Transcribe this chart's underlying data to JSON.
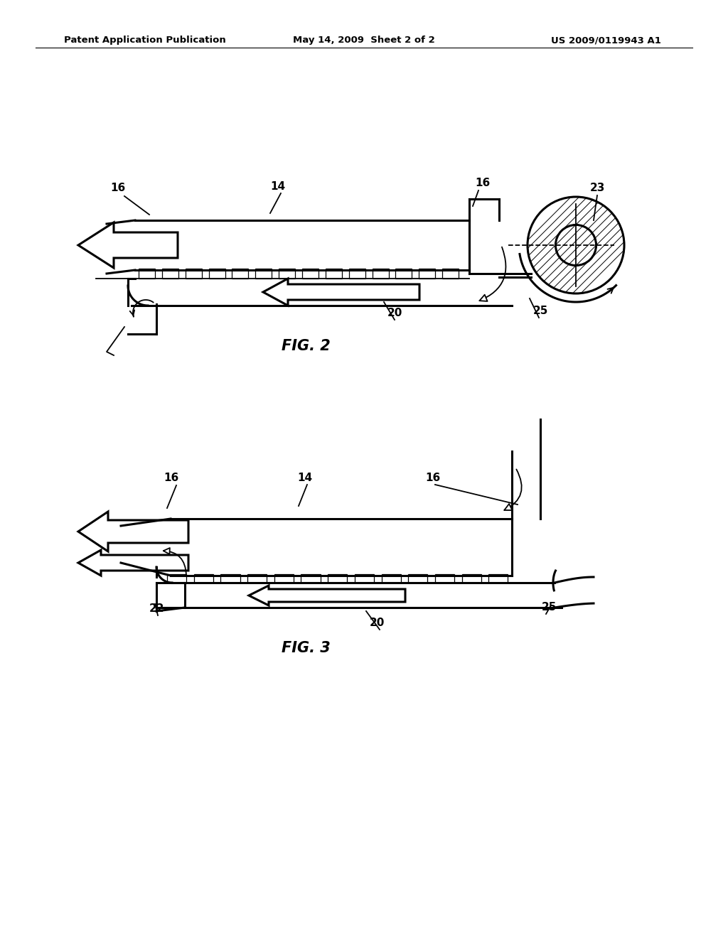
{
  "bg_color": "#ffffff",
  "line_color": "#000000",
  "header_left": "Patent Application Publication",
  "header_mid": "May 14, 2009  Sheet 2 of 2",
  "header_right": "US 2009/0119943 A1",
  "fig2_label": "FIG. 2",
  "fig3_label": "FIG. 3"
}
